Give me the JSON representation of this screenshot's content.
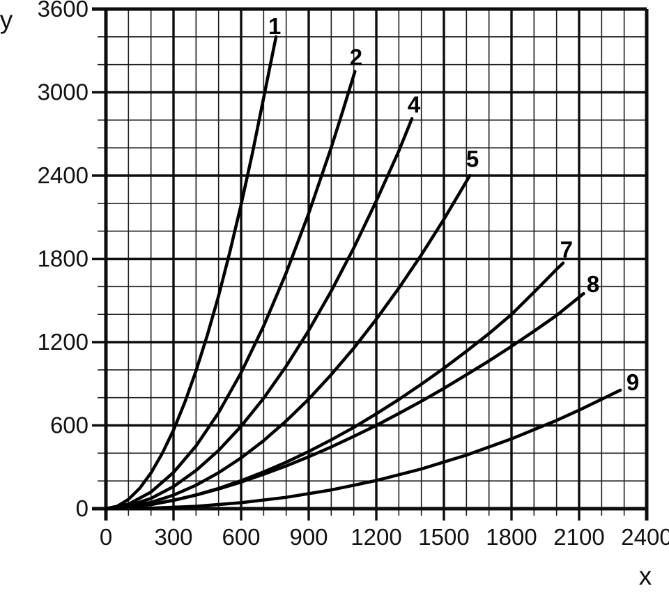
{
  "colors": {
    "ink": "#0d0d0d",
    "grid_major": "#0d0d0d",
    "grid_minor": "#1c1c1c",
    "background": "#ffffff"
  },
  "chart_data": {
    "type": "line",
    "title": "",
    "xlabel": "x",
    "ylabel": "y",
    "xlim": [
      0,
      2400
    ],
    "ylim": [
      0,
      3600
    ],
    "x_ticks": [
      0,
      300,
      600,
      900,
      1200,
      1500,
      1800,
      2100,
      2400
    ],
    "y_ticks": [
      0,
      600,
      1200,
      1800,
      2400,
      3000,
      3600
    ],
    "x_major_step": 300,
    "x_minor_step": 100,
    "y_major_step": 600,
    "y_minor_step": 200,
    "grid": "major and minor gridlines on both axes",
    "legend_position": "inline numeric labels at curve tips",
    "line_color": "#000000",
    "series": [
      {
        "label": "1",
        "label_pos": [
          749,
          3478
        ],
        "points": [
          [
            0,
            0
          ],
          [
            50,
            17
          ],
          [
            100,
            67
          ],
          [
            150,
            147
          ],
          [
            200,
            258
          ],
          [
            250,
            398
          ],
          [
            300,
            567
          ],
          [
            350,
            766
          ],
          [
            400,
            993
          ],
          [
            450,
            1250
          ],
          [
            500,
            1534
          ],
          [
            550,
            1849
          ],
          [
            600,
            2191
          ],
          [
            650,
            2561
          ],
          [
            700,
            2960
          ],
          [
            755,
            3400
          ]
        ]
      },
      {
        "label": "2",
        "label_pos": [
          1110,
          3254
        ],
        "points": [
          [
            0,
            0
          ],
          [
            100,
            32
          ],
          [
            200,
            120
          ],
          [
            300,
            261
          ],
          [
            400,
            452
          ],
          [
            500,
            692
          ],
          [
            600,
            980
          ],
          [
            700,
            1316
          ],
          [
            800,
            1699
          ],
          [
            900,
            2128
          ],
          [
            1000,
            2602
          ],
          [
            1050,
            2859
          ],
          [
            1105,
            3150
          ]
        ]
      },
      {
        "label": "4",
        "label_pos": [
          1367,
          2912
        ],
        "points": [
          [
            0,
            0
          ],
          [
            100,
            20
          ],
          [
            200,
            74
          ],
          [
            300,
            159
          ],
          [
            400,
            275
          ],
          [
            500,
            420
          ],
          [
            600,
            594
          ],
          [
            700,
            796
          ],
          [
            800,
            1027
          ],
          [
            900,
            1284
          ],
          [
            1000,
            1568
          ],
          [
            1100,
            1879
          ],
          [
            1200,
            2217
          ],
          [
            1300,
            2577
          ],
          [
            1358,
            2810
          ]
        ]
      },
      {
        "label": "5",
        "label_pos": [
          1627,
          2520
        ],
        "points": [
          [
            0,
            0
          ],
          [
            100,
            12
          ],
          [
            200,
            45
          ],
          [
            300,
            98
          ],
          [
            400,
            169
          ],
          [
            500,
            259
          ],
          [
            600,
            366
          ],
          [
            700,
            490
          ],
          [
            800,
            632
          ],
          [
            900,
            790
          ],
          [
            1000,
            966
          ],
          [
            1100,
            1157
          ],
          [
            1200,
            1365
          ],
          [
            1300,
            1589
          ],
          [
            1400,
            1829
          ],
          [
            1500,
            2085
          ],
          [
            1615,
            2400
          ]
        ]
      },
      {
        "label": "7",
        "label_pos": [
          2044,
          1868
        ],
        "points": [
          [
            0,
            0
          ],
          [
            100,
            9
          ],
          [
            200,
            29
          ],
          [
            300,
            60
          ],
          [
            400,
            99
          ],
          [
            500,
            146
          ],
          [
            600,
            202
          ],
          [
            700,
            265
          ],
          [
            800,
            335
          ],
          [
            900,
            412
          ],
          [
            1000,
            496
          ],
          [
            1100,
            586
          ],
          [
            1200,
            684
          ],
          [
            1300,
            787
          ],
          [
            1400,
            897
          ],
          [
            1500,
            1012
          ],
          [
            1600,
            1134
          ],
          [
            1700,
            1262
          ],
          [
            1800,
            1400
          ],
          [
            1900,
            1560
          ],
          [
            2000,
            1725
          ],
          [
            2029,
            1770
          ]
        ]
      },
      {
        "label": "8",
        "label_pos": [
          2162,
          1620
        ],
        "points": [
          [
            0,
            0
          ],
          [
            100,
            10
          ],
          [
            200,
            31
          ],
          [
            300,
            61
          ],
          [
            400,
            98
          ],
          [
            500,
            142
          ],
          [
            600,
            192
          ],
          [
            700,
            248
          ],
          [
            800,
            308
          ],
          [
            900,
            374
          ],
          [
            1000,
            445
          ],
          [
            1100,
            521
          ],
          [
            1200,
            600
          ],
          [
            1300,
            686
          ],
          [
            1400,
            774
          ],
          [
            1500,
            867
          ],
          [
            1600,
            965
          ],
          [
            1700,
            1065
          ],
          [
            1800,
            1170
          ],
          [
            1900,
            1279
          ],
          [
            2000,
            1393
          ],
          [
            2120,
            1550
          ]
        ]
      },
      {
        "label": "9",
        "label_pos": [
          2338,
          912
        ],
        "points": [
          [
            0,
            0
          ],
          [
            200,
            4
          ],
          [
            400,
            17
          ],
          [
            600,
            43
          ],
          [
            800,
            82
          ],
          [
            1000,
            135
          ],
          [
            1200,
            203
          ],
          [
            1400,
            286
          ],
          [
            1600,
            386
          ],
          [
            1800,
            503
          ],
          [
            2000,
            636
          ],
          [
            2100,
            710
          ],
          [
            2283,
            854
          ]
        ]
      }
    ]
  }
}
